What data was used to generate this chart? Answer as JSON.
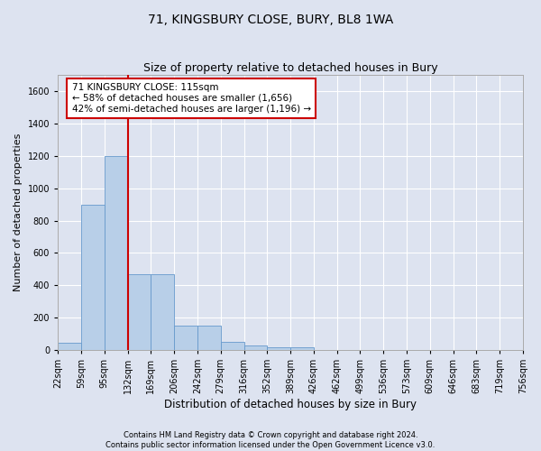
{
  "title": "71, KINGSBURY CLOSE, BURY, BL8 1WA",
  "subtitle": "Size of property relative to detached houses in Bury",
  "xlabel": "Distribution of detached houses by size in Bury",
  "ylabel": "Number of detached properties",
  "footer_line1": "Contains HM Land Registry data © Crown copyright and database right 2024.",
  "footer_line2": "Contains public sector information licensed under the Open Government Licence v3.0.",
  "annotation_line1": "71 KINGSBURY CLOSE: 115sqm",
  "annotation_line2": "← 58% of detached houses are smaller (1,656)",
  "annotation_line3": "42% of semi-detached houses are larger (1,196) →",
  "bar_values": [
    45,
    900,
    1200,
    470,
    470,
    150,
    150,
    50,
    30,
    15,
    15,
    0,
    0,
    0,
    0,
    0,
    0,
    0,
    0,
    0
  ],
  "bin_labels": [
    "22sqm",
    "59sqm",
    "95sqm",
    "132sqm",
    "169sqm",
    "206sqm",
    "242sqm",
    "279sqm",
    "316sqm",
    "352sqm",
    "389sqm",
    "426sqm",
    "462sqm",
    "499sqm",
    "536sqm",
    "573sqm",
    "609sqm",
    "646sqm",
    "683sqm",
    "719sqm",
    "756sqm"
  ],
  "ylim": [
    0,
    1700
  ],
  "yticks": [
    0,
    200,
    400,
    600,
    800,
    1000,
    1200,
    1400,
    1600
  ],
  "bar_color": "#b8cfe8",
  "bar_edge_color": "#6699cc",
  "vline_color": "#cc0000",
  "vline_x_data": 2.5,
  "background_color": "#dde3f0",
  "plot_bg_color": "#dde3f0",
  "annotation_box_edge_color": "#cc0000",
  "annotation_box_facecolor": "white",
  "grid_color": "white",
  "title_fontsize": 10,
  "subtitle_fontsize": 9,
  "axis_label_fontsize": 8.5,
  "tick_fontsize": 7,
  "annotation_fontsize": 7.5,
  "ylabel_fontsize": 8
}
